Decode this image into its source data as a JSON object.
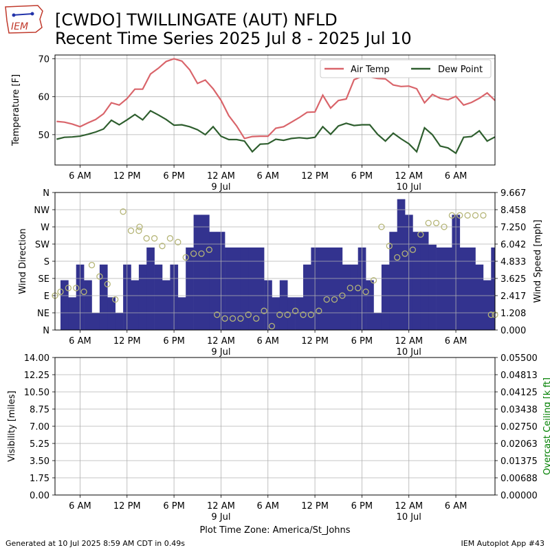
{
  "header": {
    "title_line1": "[CWDO] TWILLINGATE (AUT)  NFLD",
    "title_line2": "Recent Time Series 2025 Jul 8 - 2025 Jul 10",
    "logo_text": "IEM"
  },
  "footer": {
    "generated": "Generated at 10 Jul 2025 8:59 AM CDT in 0.49s",
    "app": "IEM Autoplot App #43",
    "timezone_label": "Plot Time Zone: America/St_Johns"
  },
  "colors": {
    "air_temp": "#d9646a",
    "dew_point": "#2e5e2e",
    "wind_speed": "#33338f",
    "wind_dir": "#b5b577",
    "ceiling_label": "#008000",
    "grid": "#b0b0b0"
  },
  "chart_data": [
    {
      "type": "line",
      "ylabel": "Temperature [F]",
      "ylim": [
        42,
        71
      ],
      "yticks": [
        50,
        60,
        70
      ],
      "grid": true,
      "legend": "top-right",
      "x_hours": [
        0,
        1,
        2,
        3,
        4,
        5,
        6,
        7,
        8,
        9,
        10,
        11,
        12,
        13,
        14,
        15,
        16,
        17,
        18,
        19,
        20,
        21,
        22,
        23,
        24,
        25,
        26,
        27,
        28,
        29,
        30,
        31,
        32,
        33,
        34,
        35,
        36,
        37,
        38,
        39,
        40,
        41,
        42,
        43,
        44,
        45,
        46,
        47,
        48,
        49,
        50,
        51,
        52,
        53,
        54,
        55,
        56
      ],
      "series": [
        {
          "name": "Air Temp",
          "values": [
            53.5,
            53.3,
            52.8,
            52.1,
            53.1,
            54.0,
            55.5,
            58.4,
            57.8,
            59.5,
            62.0,
            62.0,
            66.0,
            67.5,
            69.3,
            70.0,
            69.4,
            67.1,
            63.5,
            64.4,
            62.1,
            59.1,
            55.0,
            52.3,
            49.0,
            49.5,
            49.6,
            49.6,
            51.7,
            52.1,
            53.3,
            54.5,
            55.9,
            56.0,
            60.4,
            57.0,
            59.0,
            59.4,
            64.5,
            65.3,
            65.2,
            64.8,
            64.7,
            63.1,
            62.7,
            62.8,
            62.1,
            58.4,
            60.6,
            59.6,
            59.2,
            60.1,
            57.8,
            58.5,
            59.6,
            61.0,
            59.0
          ]
        },
        {
          "name": "Dew Point",
          "values": [
            48.8,
            49.3,
            49.4,
            49.6,
            50.1,
            50.7,
            51.5,
            53.8,
            52.6,
            53.9,
            55.3,
            53.9,
            56.3,
            55.2,
            54.0,
            52.5,
            52.6,
            52.1,
            51.3,
            50.0,
            52.1,
            49.6,
            48.7,
            48.7,
            48.3,
            45.5,
            47.5,
            47.6,
            48.8,
            48.5,
            49.0,
            49.2,
            49.0,
            49.3,
            52.1,
            50.1,
            52.3,
            53.0,
            52.4,
            52.6,
            52.6,
            50.1,
            48.3,
            50.4,
            48.9,
            47.6,
            45.5,
            51.8,
            50.0,
            47.0,
            46.5,
            45.1,
            49.3,
            49.5,
            51.0,
            48.3,
            49.4
          ]
        }
      ],
      "xticks": [
        {
          "h": 3,
          "label": "6 AM",
          "sub": ""
        },
        {
          "h": 9,
          "label": "12 PM",
          "sub": ""
        },
        {
          "h": 15,
          "label": "6 PM",
          "sub": ""
        },
        {
          "h": 21,
          "label": "12 AM",
          "sub": "9 Jul"
        },
        {
          "h": 27,
          "label": "6 AM",
          "sub": ""
        },
        {
          "h": 33,
          "label": "12 PM",
          "sub": ""
        },
        {
          "h": 39,
          "label": "6 PM",
          "sub": ""
        },
        {
          "h": 45,
          "label": "12 AM",
          "sub": "10 Jul"
        },
        {
          "h": 51,
          "label": "6 AM",
          "sub": ""
        }
      ]
    },
    {
      "type": "bar",
      "ylabel": "Wind Direction",
      "y2label": "Wind Speed [mph]",
      "dir_ylim": [
        0,
        360
      ],
      "dir_ticks": [
        {
          "v": 0,
          "label": "N"
        },
        {
          "v": 45,
          "label": "NE"
        },
        {
          "v": 90,
          "label": "E"
        },
        {
          "v": 135,
          "label": "SE"
        },
        {
          "v": 180,
          "label": "S"
        },
        {
          "v": 225,
          "label": "SW"
        },
        {
          "v": 270,
          "label": "W"
        },
        {
          "v": 315,
          "label": "NW"
        },
        {
          "v": 360,
          "label": "N"
        }
      ],
      "speed_ylim": [
        0,
        9.667
      ],
      "speed_ticks": [
        "0.000",
        "1.208",
        "2.417",
        "3.625",
        "4.833",
        "6.042",
        "7.250",
        "8.458",
        "9.667"
      ],
      "grid": true,
      "speed_series": {
        "name": "Wind Speed",
        "x_start": [
          0.5,
          1.5,
          2.5,
          3.5,
          4.5,
          5.5,
          6.5,
          7.5,
          8.5,
          9.5,
          10.5,
          11.5,
          12.5,
          13.5,
          14.5,
          15.5,
          16.5,
          17.5,
          18.5,
          19.5,
          20.5,
          21.5,
          22.5,
          23.5,
          24.5,
          25.5,
          26.5,
          27.5,
          28.5,
          29.5,
          30.5,
          31.5,
          32.5,
          33.5,
          34.5,
          35.5,
          36.5,
          37.5,
          38.5,
          39.5,
          40.5,
          41.5,
          42.5,
          43.5,
          44.5,
          45.5,
          46.5,
          47.5,
          48.5,
          49.5,
          50.5,
          51.5,
          52.5,
          53.5,
          54.5,
          55.5
        ],
        "values": [
          3.5,
          2.3,
          4.6,
          3.5,
          1.2,
          4.6,
          2.3,
          1.2,
          4.6,
          3.5,
          4.6,
          5.8,
          4.6,
          3.5,
          4.6,
          2.3,
          5.8,
          8.1,
          8.1,
          6.9,
          6.9,
          5.8,
          5.8,
          5.8,
          5.8,
          5.8,
          3.5,
          2.3,
          3.5,
          2.3,
          2.3,
          4.6,
          5.8,
          5.8,
          5.8,
          5.8,
          4.6,
          4.6,
          5.8,
          3.5,
          1.2,
          4.6,
          6.9,
          9.2,
          8.1,
          6.9,
          6.9,
          6.0,
          5.8,
          5.8,
          8.1,
          5.8,
          5.8,
          4.6,
          3.5,
          5.8
        ]
      },
      "dir_series": {
        "name": "Wind Direction",
        "x": [
          -0.2,
          0.5,
          1.5,
          2.5,
          3.5,
          4.5,
          5.5,
          6.5,
          7.5,
          8.5,
          9.5,
          10.5,
          10.6,
          11.5,
          12.5,
          13.5,
          14.5,
          15.5,
          16.5,
          17.5,
          18.5,
          19.5,
          20.5,
          21.5,
          22.5,
          23.5,
          24.5,
          25.5,
          26.5,
          27.5,
          28.5,
          29.5,
          30.5,
          31.5,
          32.5,
          33.5,
          34.5,
          35.5,
          36.5,
          37.5,
          38.5,
          39.5,
          40.5,
          41.5,
          42.5,
          43.5,
          44.5,
          45.5,
          46.5,
          47.5,
          48.5,
          49.5,
          50.5,
          51.5,
          52.5,
          53.5,
          54.5,
          55.5,
          56
        ],
        "values": [
          90,
          100,
          110,
          110,
          100,
          170,
          140,
          120,
          80,
          310,
          260,
          260,
          270,
          240,
          240,
          220,
          240,
          230,
          190,
          200,
          200,
          210,
          40,
          30,
          30,
          30,
          40,
          30,
          50,
          10,
          40,
          40,
          50,
          40,
          40,
          50,
          80,
          80,
          90,
          110,
          110,
          100,
          130,
          270,
          220,
          190,
          200,
          210,
          250,
          280,
          280,
          270,
          300,
          300,
          300,
          300,
          300,
          40,
          40
        ]
      }
    },
    {
      "type": "line",
      "ylabel": "Visibility [miles]",
      "y2label": "Overcast Ceiling [k ft]",
      "ylim": [
        0,
        14
      ],
      "yticks": [
        "0.00",
        "1.75",
        "3.50",
        "5.25",
        "7.00",
        "8.75",
        "10.50",
        "12.25",
        "14.00"
      ],
      "y2lim": [
        0,
        0.055
      ],
      "y2ticks": [
        "0.00000",
        "0.00688",
        "0.01375",
        "0.02063",
        "0.02750",
        "0.03438",
        "0.04125",
        "0.04813",
        "0.05500"
      ],
      "grid": true,
      "series": [],
      "xlabel": "Plot Time Zone: America/St_Johns"
    }
  ]
}
